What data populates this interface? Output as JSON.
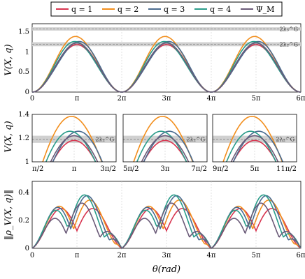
{
  "colors": {
    "q1": "#d8344f",
    "q2": "#f28e1c",
    "q3": "#4a6b8f",
    "q4": "#2a9c8a",
    "psi": "#6a5a78"
  },
  "legend": [
    {
      "key": "q1",
      "label": "q = 1"
    },
    {
      "key": "q2",
      "label": "q = 2"
    },
    {
      "key": "q3",
      "label": "q = 3"
    },
    {
      "key": "q4",
      "label": "q = 4"
    },
    {
      "key": "psi",
      "label": "Ψ_M"
    }
  ],
  "chart_data": [
    {
      "type": "line",
      "ylabel": "V(X, q)",
      "xlim_pi": [
        0,
        6
      ],
      "ylim": [
        0,
        1.7
      ],
      "yticks": [
        "0",
        "0.5",
        "1",
        "1.5"
      ],
      "xticks": [
        "0",
        "π",
        "2π",
        "3π",
        "4π",
        "5π",
        "6π"
      ],
      "bands": [
        {
          "label": "2λ₃^G",
          "center": 1.57,
          "half": 0.04
        },
        {
          "label": "2λ₂^G",
          "center": 1.19,
          "half": 0.05
        }
      ],
      "series": [
        {
          "key": "q1",
          "peak": 1.18,
          "offset": 0.0
        },
        {
          "key": "q2",
          "peak": 1.38,
          "offset": 0.05
        },
        {
          "key": "q3",
          "peak": 1.25,
          "offset": -0.08
        },
        {
          "key": "q4",
          "peak": 1.25,
          "offset": 0.08
        },
        {
          "key": "psi",
          "peak": 1.22,
          "offset": 0.0
        }
      ]
    },
    {
      "type": "line",
      "ylabel": "V(X, q)",
      "ylim": [
        1.0,
        1.4
      ],
      "yticks": [
        "1",
        "1.2",
        "1.4"
      ],
      "band": {
        "label": "2λ₂^G",
        "center": 1.19,
        "half": 0.03
      },
      "panels": [
        {
          "xlim_pi": [
            0.5,
            1.5
          ],
          "xticks": [
            "π/2",
            "π",
            "3π/2"
          ]
        },
        {
          "xlim_pi": [
            2.5,
            3.5
          ],
          "xticks": [
            "5π/2",
            "3π",
            "7π/2"
          ]
        },
        {
          "xlim_pi": [
            4.5,
            5.5
          ],
          "xticks": [
            "9π/2",
            "5π",
            "11π/2"
          ]
        }
      ]
    },
    {
      "type": "line",
      "ylabel": "‖ρ_V(X, q)‖",
      "xlabel": "θ(rad)",
      "xlim_pi": [
        0,
        6
      ],
      "ylim": [
        0,
        0.48
      ],
      "yticks": [
        "0",
        "0.2",
        "0.4"
      ],
      "xticks": [
        "0",
        "π",
        "2π",
        "3π",
        "4π",
        "5π",
        "6π"
      ],
      "series": [
        {
          "key": "q1",
          "amp": 0.36,
          "floor": 0.0
        },
        {
          "key": "q2",
          "amp": 0.4,
          "floor": 0.12
        },
        {
          "key": "q3",
          "amp": 0.41,
          "floor": 0.08
        },
        {
          "key": "q4",
          "amp": 0.4,
          "floor": 0.18
        },
        {
          "key": "psi",
          "amp": 0.33,
          "floor": 0.05
        }
      ]
    }
  ]
}
